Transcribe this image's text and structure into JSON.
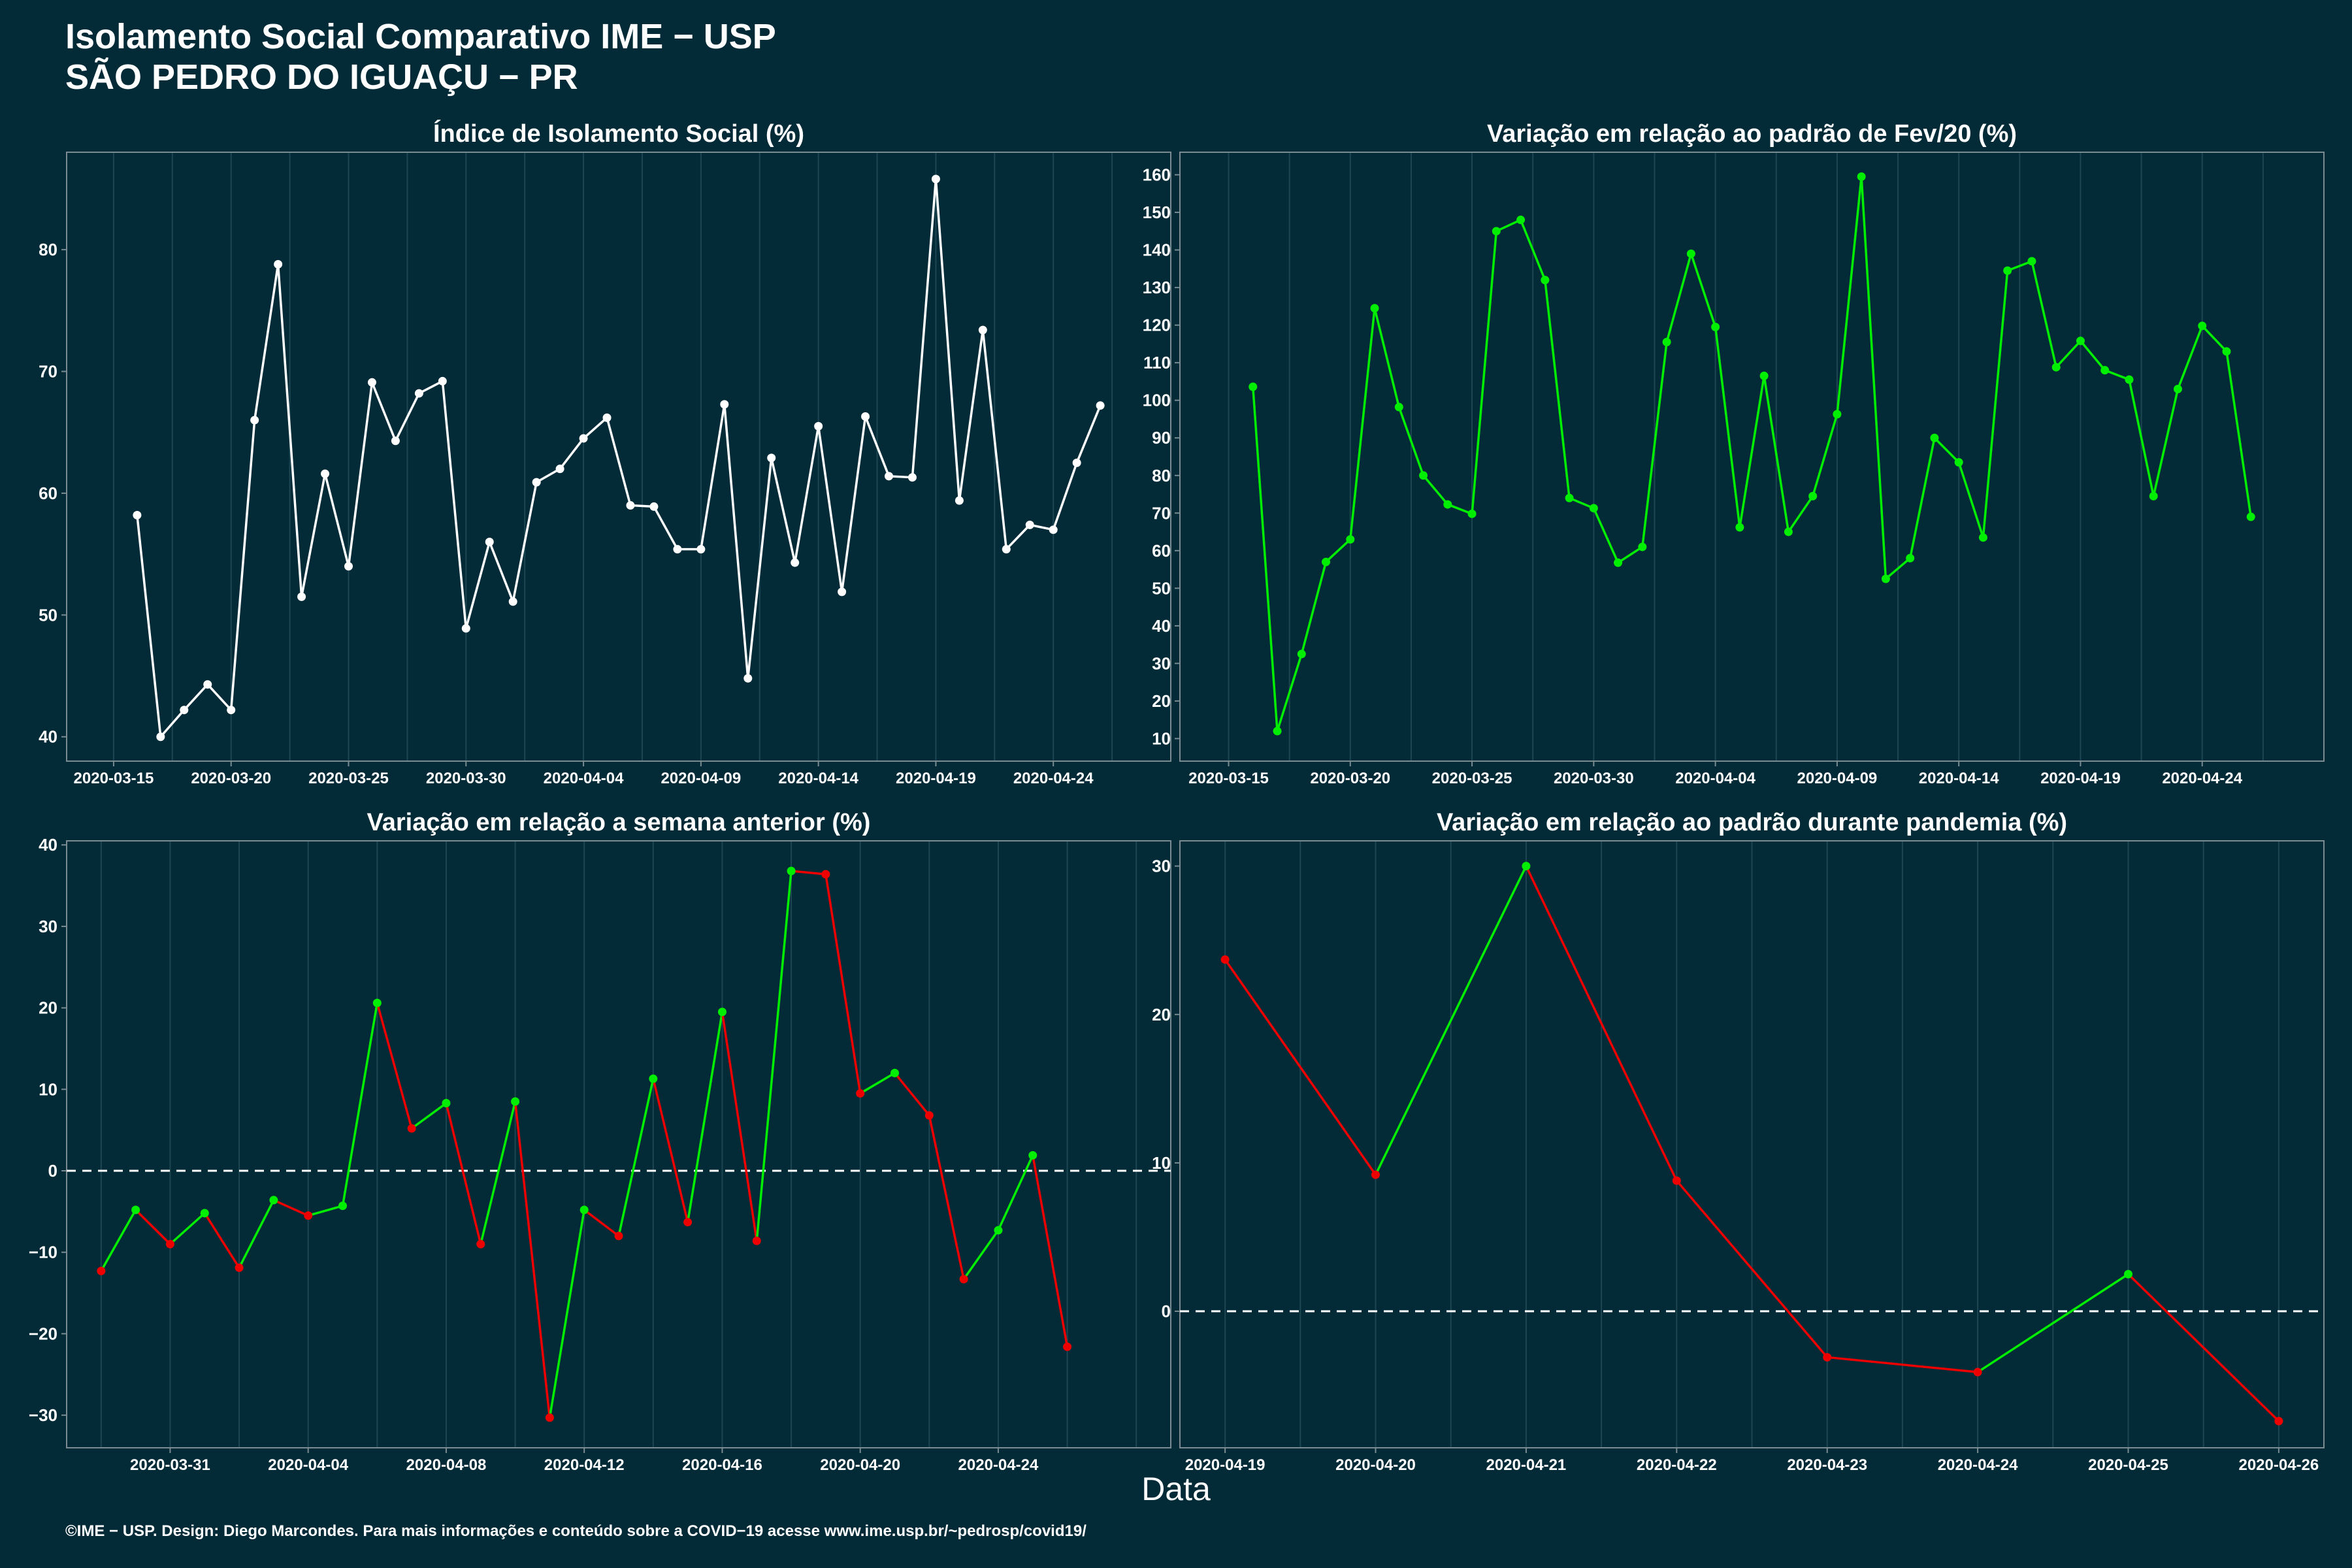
{
  "header": {
    "title": "Isolamento Social Comparativo IME − USP",
    "subtitle": "SÃO PEDRO DO IGUAÇU − PR"
  },
  "shared_xlabel": "Data",
  "footer": "©IME − USP. Design: Diego Marcondes. Para mais informações e conteúdo sobre a COVID−19 acesse www.ime.usp.br/~pedrosp/covid19/",
  "colors": {
    "background": "#022b37",
    "panel_border": "#7a8c92",
    "grid": "#1d4652",
    "white_series": "#ffffff",
    "green": "#00ee00",
    "red": "#ee0000"
  },
  "chart_data": [
    {
      "id": "isolamento",
      "type": "line",
      "title": "Índice de Isolamento Social (%)",
      "color": "white",
      "x_start": "2020-03-16",
      "x_ticks": [
        "2020-03-15",
        "2020-03-20",
        "2020-03-25",
        "2020-03-30",
        "2020-04-04",
        "2020-04-09",
        "2020-04-14",
        "2020-04-19",
        "2020-04-24"
      ],
      "y_ticks": [
        "40",
        "50",
        "60",
        "70",
        "80"
      ],
      "xlim": [
        "2020-03-13",
        "2020-04-29"
      ],
      "ylim": [
        38,
        88
      ],
      "values": [
        58.2,
        40.0,
        42.2,
        44.3,
        42.2,
        66.0,
        78.8,
        51.5,
        61.6,
        54.0,
        69.1,
        64.3,
        68.2,
        69.2,
        48.9,
        56.0,
        51.1,
        60.9,
        62.0,
        64.5,
        66.2,
        59.0,
        58.9,
        55.4,
        55.4,
        67.3,
        44.8,
        62.9,
        54.3,
        65.5,
        51.9,
        66.3,
        61.4,
        61.3,
        85.8,
        59.4,
        73.4,
        55.4,
        57.4,
        57.0,
        62.5,
        67.2
      ]
    },
    {
      "id": "fev20",
      "type": "line",
      "title": "Variação em relação ao padrão de Fev/20 (%)",
      "color": "green",
      "x_start": "2020-03-16",
      "x_ticks": [
        "2020-03-15",
        "2020-03-20",
        "2020-03-25",
        "2020-03-30",
        "2020-04-04",
        "2020-04-09",
        "2020-04-14",
        "2020-04-19",
        "2020-04-24"
      ],
      "y_ticks": [
        "10",
        "20",
        "30",
        "40",
        "50",
        "60",
        "70",
        "80",
        "90",
        "100",
        "110",
        "120",
        "130",
        "140",
        "150",
        "160"
      ],
      "xlim": [
        "2020-03-13",
        "2020-04-29"
      ],
      "ylim": [
        4,
        166
      ],
      "values": [
        103.6,
        12.0,
        32.5,
        57.0,
        63.0,
        124.5,
        98.2,
        80.0,
        72.3,
        69.8,
        145.0,
        148.0,
        132.0,
        74.0,
        71.3,
        56.8,
        61.0,
        115.5,
        139.0,
        119.5,
        66.2,
        106.5,
        65.0,
        74.5,
        96.3,
        159.5,
        52.5,
        58.0,
        90.0,
        83.5,
        63.5,
        134.5,
        137.0,
        108.8,
        115.8,
        108.0,
        105.5,
        74.5,
        103.0,
        119.8,
        113.0,
        69.0
      ]
    },
    {
      "id": "semana",
      "type": "line",
      "title": "Variação em relação a semana anterior (%)",
      "color_rule": "green when increasing, red when decreasing",
      "x_start": "2020-03-29",
      "x_ticks": [
        "2020-03-31",
        "2020-04-04",
        "2020-04-08",
        "2020-04-12",
        "2020-04-16",
        "2020-04-20",
        "2020-04-24"
      ],
      "y_ticks": [
        "−30",
        "−20",
        "−10",
        "0",
        "10",
        "20",
        "30",
        "40"
      ],
      "xlim": [
        "2020-03-28",
        "2020-04-29"
      ],
      "ylim": [
        -34,
        40.5
      ],
      "reference_line": 0,
      "values": [
        -12.3,
        -4.8,
        -9.0,
        -5.2,
        -11.9,
        -3.6,
        -5.5,
        -4.3,
        20.6,
        5.2,
        8.3,
        -9.0,
        8.5,
        -30.3,
        -4.8,
        -8.0,
        11.3,
        -6.3,
        19.5,
        -8.6,
        36.8,
        36.4,
        9.5,
        12.0,
        6.8,
        -13.3,
        -7.3,
        1.9,
        -21.6
      ]
    },
    {
      "id": "pandemia",
      "type": "line",
      "title": "Variação em relação ao padrão durante pandemia (%)",
      "color_rule": "green when increasing, red when decreasing",
      "x_start": "2020-04-19",
      "x_ticks": [
        "2020-04-19",
        "2020-04-20",
        "2020-04-21",
        "2020-04-22",
        "2020-04-23",
        "2020-04-24",
        "2020-04-25",
        "2020-04-26"
      ],
      "y_ticks": [
        "0",
        "10",
        "20",
        "30"
      ],
      "xlim": [
        "2020-04-18.7",
        "2020-04-26.3"
      ],
      "ylim": [
        -9.2,
        31.7
      ],
      "reference_line": 0,
      "values": [
        23.7,
        9.2,
        30.0,
        8.8,
        -3.1,
        -4.1,
        2.5,
        -7.4
      ]
    }
  ]
}
